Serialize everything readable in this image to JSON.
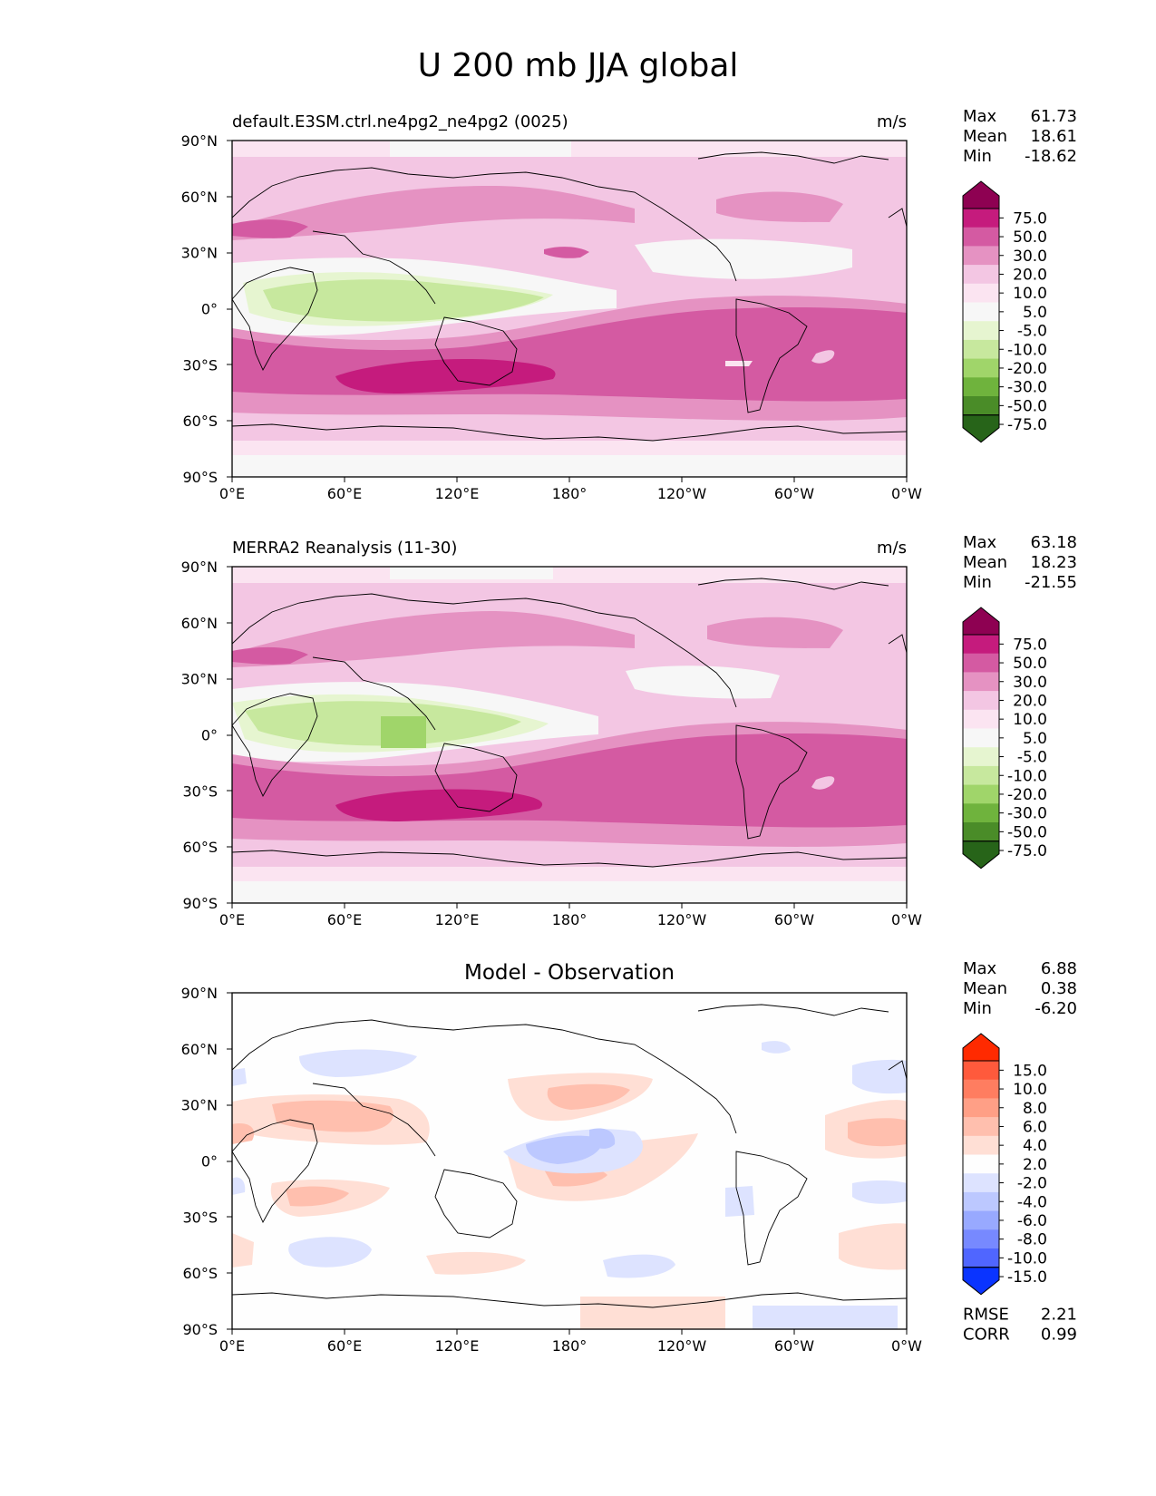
{
  "figure": {
    "title": "U 200 mb JJA global"
  },
  "axes_labels": {
    "lat_ticks": [
      "90°N",
      "60°N",
      "30°N",
      "0°",
      "30°S",
      "60°S",
      "90°S"
    ],
    "lon_ticks": [
      "0°E",
      "60°E",
      "120°E",
      "180°",
      "120°W",
      "60°W",
      "0°W"
    ]
  },
  "panels": [
    {
      "id": "test",
      "title_left": "default.E3SM.ctrl.ne4pg2_ne4pg2 (0025)",
      "title_center": "",
      "units": "m/s",
      "stats": [
        {
          "label": "Max",
          "value": "61.73"
        },
        {
          "label": "Mean",
          "value": "18.61"
        },
        {
          "label": "Min",
          "value": "-18.62"
        }
      ],
      "colorbar": {
        "levels": [
          "75.0",
          "50.0",
          "30.0",
          "20.0",
          "10.0",
          "5.0",
          "-5.0",
          "-10.0",
          "-20.0",
          "-30.0",
          "-50.0",
          "-75.0"
        ],
        "colors": [
          "#8e0152",
          "#c51b7d",
          "#d45aa2",
          "#e592c2",
          "#f3c6e3",
          "#fbe4f1",
          "#f7f7f7",
          "#e6f5d0",
          "#c7e89e",
          "#a0d56a",
          "#6fb33d",
          "#4a8c28",
          "#276419"
        ]
      },
      "metrics": []
    },
    {
      "id": "reference",
      "title_left": "MERRA2 Reanalysis (11-30)",
      "title_center": "",
      "units": "m/s",
      "stats": [
        {
          "label": "Max",
          "value": "63.18"
        },
        {
          "label": "Mean",
          "value": "18.23"
        },
        {
          "label": "Min",
          "value": "-21.55"
        }
      ],
      "colorbar": {
        "levels": [
          "75.0",
          "50.0",
          "30.0",
          "20.0",
          "10.0",
          "5.0",
          "-5.0",
          "-10.0",
          "-20.0",
          "-30.0",
          "-50.0",
          "-75.0"
        ],
        "colors": [
          "#8e0152",
          "#c51b7d",
          "#d45aa2",
          "#e592c2",
          "#f3c6e3",
          "#fbe4f1",
          "#f7f7f7",
          "#e6f5d0",
          "#c7e89e",
          "#a0d56a",
          "#6fb33d",
          "#4a8c28",
          "#276419"
        ]
      },
      "metrics": []
    },
    {
      "id": "difference",
      "title_left": "",
      "title_center": "Model - Observation",
      "units": "",
      "stats": [
        {
          "label": "Max",
          "value": "6.88"
        },
        {
          "label": "Mean",
          "value": "0.38"
        },
        {
          "label": "Min",
          "value": "-6.20"
        }
      ],
      "colorbar": {
        "levels": [
          "15.0",
          "10.0",
          "8.0",
          "6.0",
          "4.0",
          "2.0",
          "-2.0",
          "-4.0",
          "-6.0",
          "-8.0",
          "-10.0",
          "-15.0"
        ],
        "colors": [
          "#ff2a00",
          "#ff5a3c",
          "#ff7d60",
          "#ff9f86",
          "#ffbfae",
          "#ffdfd5",
          "#fefefe",
          "#dde3ff",
          "#bcc8ff",
          "#98a9ff",
          "#7789ff",
          "#5066ff",
          "#0a34ff"
        ]
      },
      "metrics": [
        {
          "label": "RMSE",
          "value": "2.21"
        },
        {
          "label": "CORR",
          "value": "0.99"
        }
      ]
    }
  ],
  "field_colors": {
    "continent_outline": "#000000",
    "frame": "#000000"
  }
}
